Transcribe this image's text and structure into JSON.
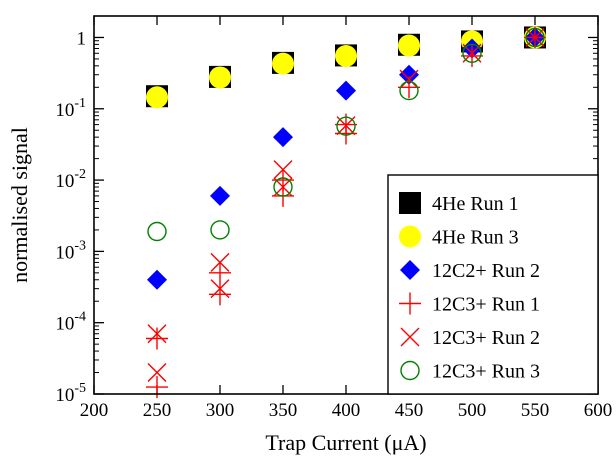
{
  "chart_data": {
    "type": "scatter",
    "xlabel": "Trap Current (μA)",
    "ylabel": "normalised signal",
    "xlim": [
      200,
      600
    ],
    "ylim": [
      1e-05,
      2
    ],
    "yscale": "log",
    "x_ticks": [
      {
        "value": 200,
        "label": "200"
      },
      {
        "value": 250,
        "label": "250"
      },
      {
        "value": 300,
        "label": "300"
      },
      {
        "value": 350,
        "label": "350"
      },
      {
        "value": 400,
        "label": "400"
      },
      {
        "value": 450,
        "label": "450"
      },
      {
        "value": 500,
        "label": "500"
      },
      {
        "value": 550,
        "label": "550"
      },
      {
        "value": 600,
        "label": "600"
      }
    ],
    "y_ticks": [
      {
        "value": 1e-05,
        "base": "10",
        "exp": "-5"
      },
      {
        "value": 0.0001,
        "base": "10",
        "exp": "-4"
      },
      {
        "value": 0.001,
        "base": "10",
        "exp": "-3"
      },
      {
        "value": 0.01,
        "base": "10",
        "exp": "-2"
      },
      {
        "value": 0.1,
        "base": "10",
        "exp": "-1"
      },
      {
        "value": 1,
        "base": "1",
        "exp": ""
      }
    ],
    "grid": false,
    "legend_position": "bottom-right",
    "series": [
      {
        "name": "4He Run 1",
        "marker": "square",
        "color": "#000000",
        "points": [
          [
            250,
            0.15
          ],
          [
            300,
            0.28
          ],
          [
            350,
            0.44
          ],
          [
            400,
            0.56
          ],
          [
            450,
            0.79
          ],
          [
            500,
            0.88
          ],
          [
            550,
            1.0
          ]
        ]
      },
      {
        "name": "4He Run 3",
        "marker": "circle",
        "color": "#ffff00",
        "points": [
          [
            250,
            0.145
          ],
          [
            300,
            0.275
          ],
          [
            350,
            0.43
          ],
          [
            400,
            0.55
          ],
          [
            450,
            0.77
          ],
          [
            500,
            0.88
          ],
          [
            550,
            1.0
          ]
        ]
      },
      {
        "name": "12C2+ Run 2",
        "marker": "diamond",
        "color": "#0000ff",
        "points": [
          [
            250,
            0.0004
          ],
          [
            300,
            0.006
          ],
          [
            350,
            0.04
          ],
          [
            400,
            0.18
          ],
          [
            450,
            0.3
          ],
          [
            500,
            0.7
          ],
          [
            550,
            1.0
          ]
        ]
      },
      {
        "name": "12C3+ Run 1",
        "marker": "plus",
        "color": "#ff0000",
        "points": [
          [
            250,
            1.25e-05
          ],
          [
            250,
            6e-05
          ],
          [
            300,
            0.00025
          ],
          [
            300,
            0.0005
          ],
          [
            350,
            0.006
          ],
          [
            350,
            0.01
          ],
          [
            400,
            0.045
          ],
          [
            400,
            0.06
          ],
          [
            450,
            0.2
          ],
          [
            500,
            0.55
          ],
          [
            550,
            1.0
          ]
        ]
      },
      {
        "name": "12C3+ Run 2",
        "marker": "cross",
        "color": "#ff0000",
        "points": [
          [
            250,
            2e-05
          ],
          [
            250,
            7e-05
          ],
          [
            300,
            0.0003
          ],
          [
            300,
            0.0007
          ],
          [
            350,
            0.008
          ],
          [
            350,
            0.014
          ],
          [
            400,
            0.058
          ],
          [
            450,
            0.26
          ],
          [
            500,
            0.6
          ],
          [
            550,
            1.0
          ]
        ]
      },
      {
        "name": "12C3+ Run 3",
        "marker": "open-circle",
        "color": "#008000",
        "points": [
          [
            250,
            0.0019
          ],
          [
            300,
            0.002
          ],
          [
            350,
            0.008
          ],
          [
            400,
            0.057
          ],
          [
            450,
            0.18
          ],
          [
            500,
            0.6
          ],
          [
            550,
            1.0
          ]
        ]
      }
    ]
  }
}
